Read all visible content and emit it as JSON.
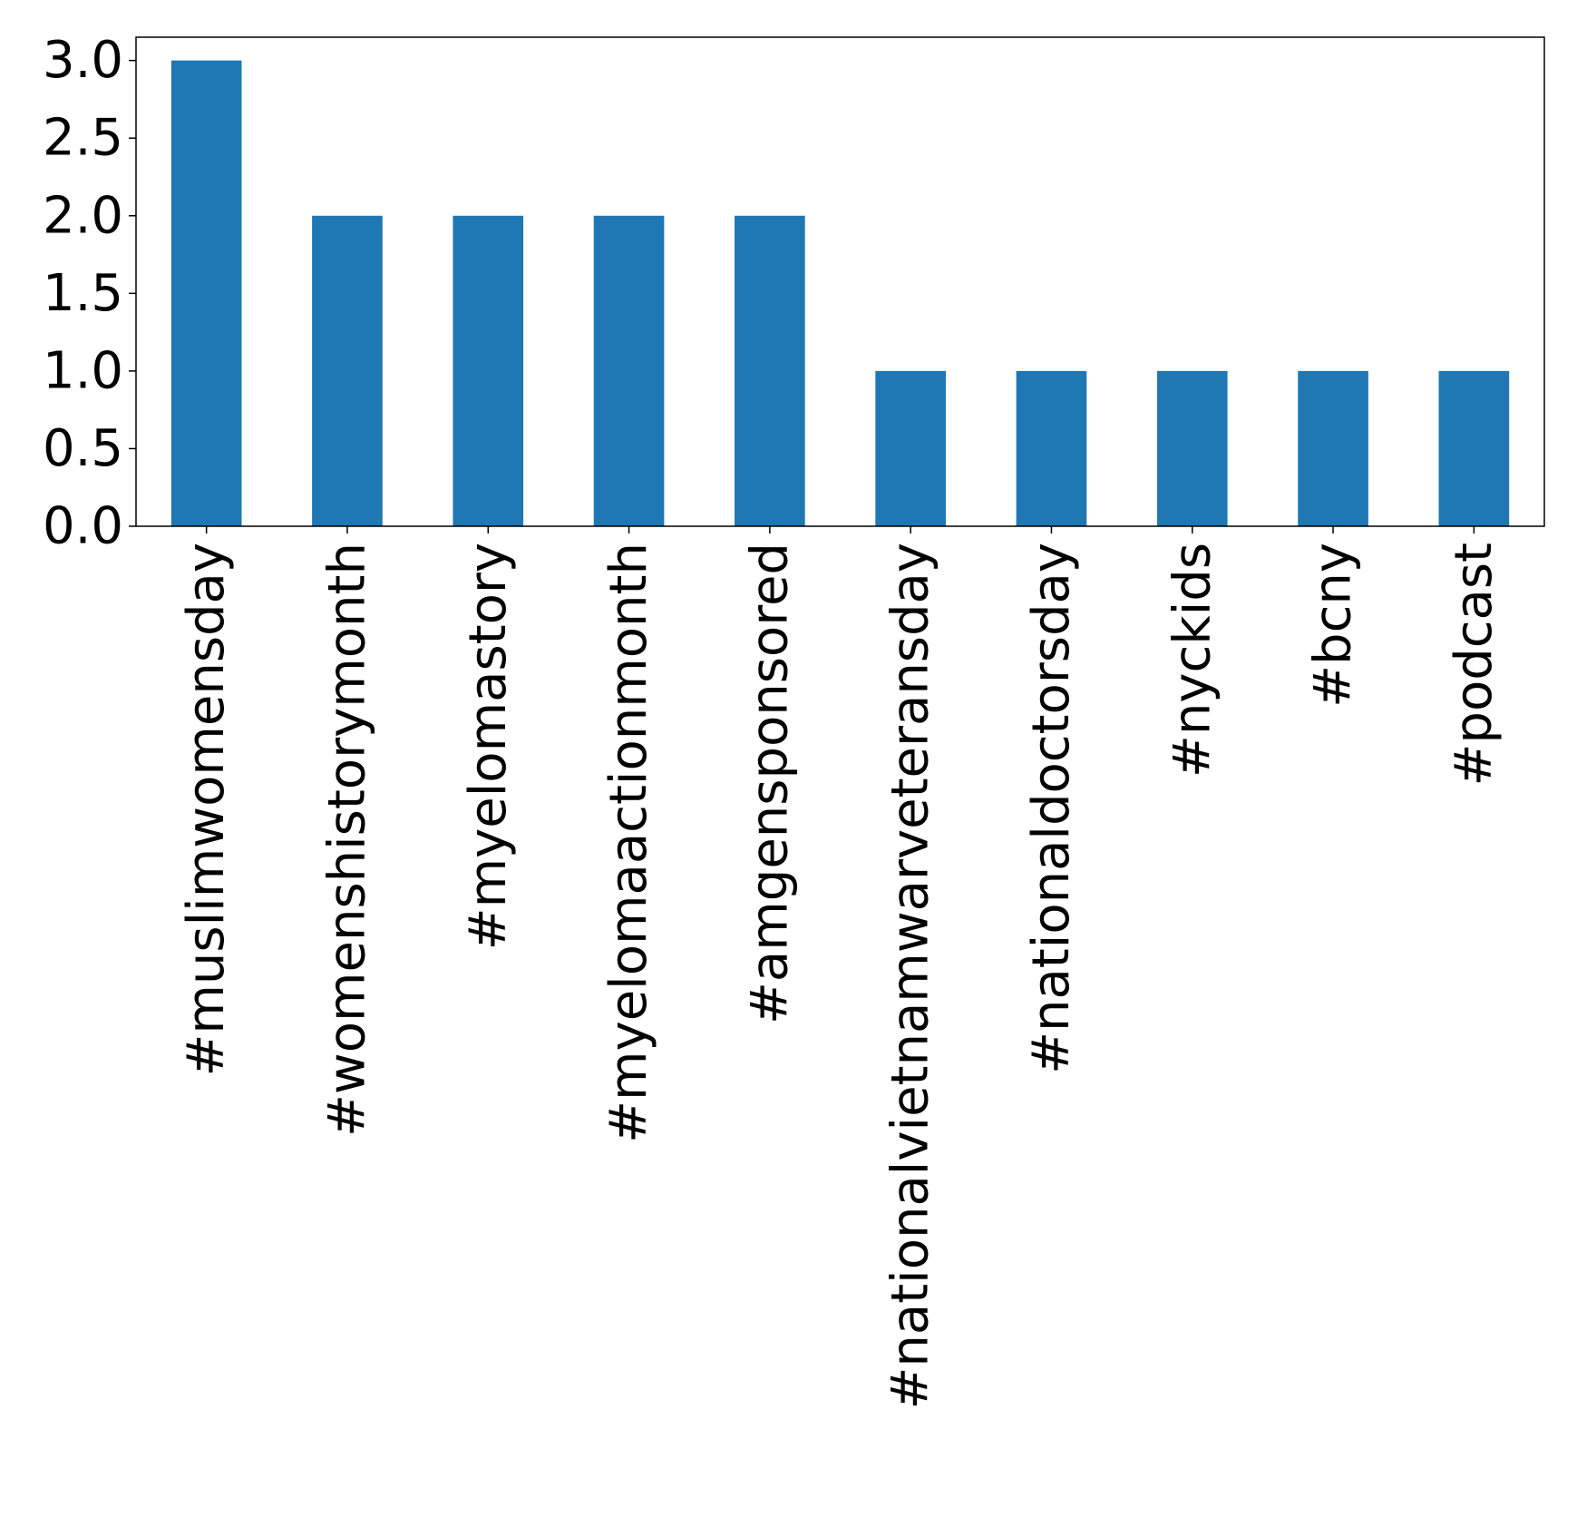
{
  "chart_data": {
    "type": "bar",
    "title": "",
    "xlabel": "",
    "ylabel": "",
    "categories": [
      "#muslimwomensday",
      "#womenshistorymonth",
      "#myelomastory",
      "#myelomaactionmonth",
      "#amgensponsored",
      "#nationalvietnamwarveteransday",
      "#nationaldoctorsday",
      "#nyckids",
      "#bcny",
      "#podcast"
    ],
    "values": [
      3,
      2,
      2,
      2,
      2,
      1,
      1,
      1,
      1,
      1
    ],
    "ylim": [
      0,
      3.15
    ],
    "yticks": [
      "0.0",
      "0.5",
      "1.0",
      "1.5",
      "2.0",
      "2.5",
      "3.0"
    ],
    "bar_color": "#1f77b4",
    "grid": false,
    "legend": "none"
  }
}
